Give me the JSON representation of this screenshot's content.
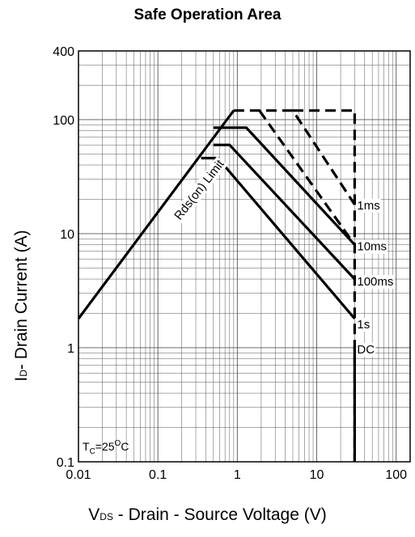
{
  "chart_data": {
    "type": "line",
    "title": "Safe Operation Area",
    "xlabel": {
      "main": "V",
      "sub": "DS",
      "rest": " - Drain - Source Voltage (V)"
    },
    "ylabel": {
      "main": "I",
      "sub": "D",
      "rest": "- Drain Current (A)"
    },
    "x_scale": "log",
    "y_scale": "log",
    "xlim": [
      0.01,
      150
    ],
    "ylim": [
      0.1,
      400
    ],
    "x_ticks": [
      "0.01",
      "0.1",
      "1",
      "10",
      "100"
    ],
    "y_ticks": [
      "0.1",
      "1",
      "10",
      "100",
      "400"
    ],
    "grid": true,
    "annotation_limit": "Rds(on) Limit",
    "annotation_temp": {
      "main": "T",
      "sub": "C",
      "rest": "=25",
      "sup": "O",
      "unit": "C"
    },
    "series": [
      {
        "name": "Rds(on) Limit",
        "style": "solid",
        "x": [
          0.01,
          0.9
        ],
        "y": [
          1.8,
          120
        ]
      },
      {
        "name": "1ms",
        "style": "dashed",
        "x": [
          0.9,
          5.0,
          30
        ],
        "y": [
          120,
          120,
          18
        ]
      },
      {
        "name": "10ms",
        "style": "solid",
        "x": [
          0.5,
          1.3,
          30
        ],
        "y": [
          85,
          85,
          8
        ]
      },
      {
        "name": "100ms",
        "style": "solid",
        "x": [
          0.5,
          0.8,
          30
        ],
        "y": [
          60,
          60,
          4
        ]
      },
      {
        "name": "1s",
        "style": "solid",
        "x": [
          0.35,
          0.57,
          30
        ],
        "y": [
          46,
          46,
          1.8
        ]
      },
      {
        "name": "DC",
        "style": "solid",
        "x": [
          30,
          30
        ],
        "y": [
          1.05,
          0.1
        ]
      }
    ],
    "extra_segments": [
      {
        "style": "dashed",
        "x": [
          1.9,
          30
        ],
        "y": [
          120,
          8
        ]
      },
      {
        "style": "dashed",
        "x": [
          5.0,
          30,
          30
        ],
        "y": [
          120,
          120,
          0.1
        ]
      }
    ]
  }
}
